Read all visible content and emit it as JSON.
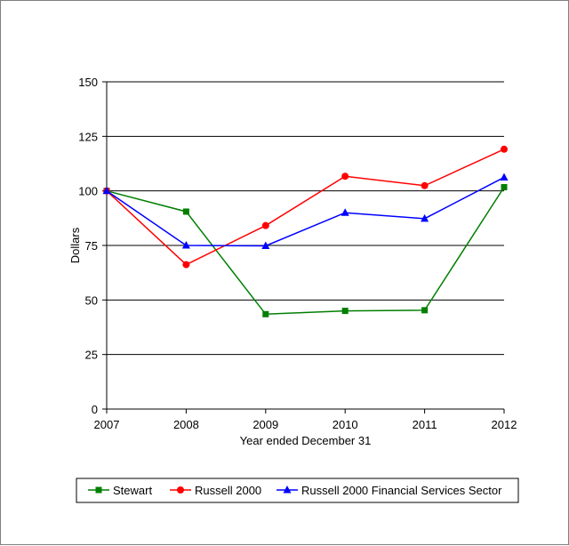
{
  "chart_data": {
    "type": "line",
    "title": "",
    "xlabel": "Year ended December 31",
    "ylabel": "Dollars",
    "categories": [
      "2007",
      "2008",
      "2009",
      "2010",
      "2011",
      "2012"
    ],
    "ylim": [
      0,
      150
    ],
    "yticks": [
      "0",
      "25",
      "50",
      "75",
      "100",
      "125",
      "150"
    ],
    "ytick_values": [
      0,
      25,
      50,
      75,
      100,
      125,
      150
    ],
    "grid": "horizontal",
    "legend_position": "bottom",
    "series": [
      {
        "name": "Stewart",
        "color": "#007f00",
        "marker": "square",
        "values": [
          100,
          90.5,
          43.5,
          45,
          45.3,
          101.7
        ]
      },
      {
        "name": "Russell 2000",
        "color": "#ff0000",
        "marker": "circle",
        "values": [
          100,
          66.2,
          84.1,
          106.7,
          102.4,
          119.1
        ]
      },
      {
        "name": "Russell 2000 Financial Services Sector",
        "color": "#0000ff",
        "marker": "triangle",
        "values": [
          100,
          75,
          74.8,
          90,
          87.3,
          106.2
        ]
      }
    ]
  }
}
